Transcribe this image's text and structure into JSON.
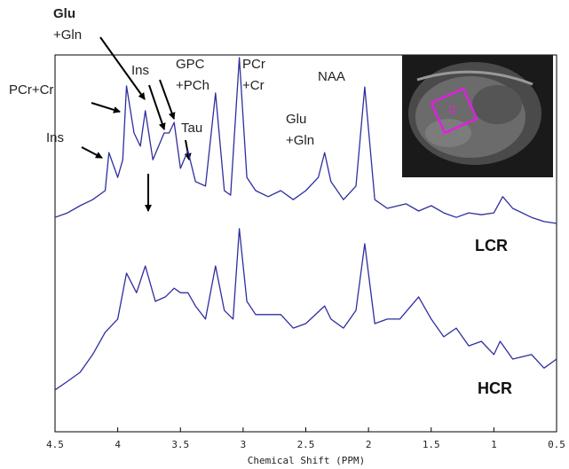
{
  "chart_data": {
    "type": "line",
    "x_label": "Chemical Shift (PPM)",
    "xlim": [
      4.5,
      0.5
    ],
    "xticks": [
      4.5,
      4,
      3.5,
      3,
      2.5,
      2,
      1.5,
      1,
      0.5
    ],
    "ylim": [
      0,
      100
    ],
    "annotations": [
      [
        "Glu",
        "+Gln"
      ],
      [
        "PCr+Cr"
      ],
      [
        "Ins"
      ],
      [
        "Ins"
      ],
      [
        "GPC",
        "+PCh"
      ],
      [
        "Tau"
      ],
      [
        "PCr",
        "+Cr"
      ],
      [
        "NAA"
      ],
      [
        "Glu",
        "+Gln"
      ]
    ],
    "series": [
      {
        "name": "LCR",
        "color": "#2e2e9e",
        "x": [
          4.5,
          4.4,
          4.3,
          4.2,
          4.1,
          4.07,
          4.0,
          3.96,
          3.93,
          3.87,
          3.82,
          3.78,
          3.72,
          3.63,
          3.59,
          3.55,
          3.5,
          3.44,
          3.38,
          3.3,
          3.22,
          3.15,
          3.1,
          3.03,
          2.97,
          2.9,
          2.8,
          2.7,
          2.6,
          2.5,
          2.4,
          2.35,
          2.3,
          2.2,
          2.1,
          2.03,
          1.95,
          1.85,
          1.7,
          1.6,
          1.5,
          1.4,
          1.3,
          1.2,
          1.1,
          1.0,
          0.93,
          0.85,
          0.7,
          0.6,
          0.5
        ],
        "values": [
          56.9,
          58.1,
          60,
          61.6,
          64,
          74.1,
          67.5,
          72.2,
          91.8,
          79.3,
          75.8,
          85.2,
          72.2,
          79.3,
          79.3,
          82.1,
          69.9,
          74.6,
          66.4,
          65.2,
          89.9,
          64,
          62.8,
          99.3,
          67.5,
          64,
          62.4,
          64,
          61.6,
          64,
          67.5,
          74.1,
          66.4,
          61.6,
          65.2,
          91.5,
          61.6,
          59.3,
          60.5,
          58.6,
          60,
          58.1,
          56.9,
          58.1,
          57.6,
          58.1,
          62.4,
          59.3,
          56.9,
          55.8,
          55.3
        ]
      },
      {
        "name": "HCR",
        "color": "#2e2e9e",
        "x": [
          4.5,
          4.4,
          4.3,
          4.2,
          4.1,
          4.0,
          3.93,
          3.85,
          3.78,
          3.7,
          3.62,
          3.55,
          3.5,
          3.44,
          3.38,
          3.3,
          3.22,
          3.15,
          3.08,
          3.03,
          2.97,
          2.9,
          2.7,
          2.6,
          2.5,
          2.35,
          2.3,
          2.2,
          2.1,
          2.03,
          1.95,
          1.85,
          1.75,
          1.6,
          1.5,
          1.4,
          1.3,
          1.2,
          1.1,
          1.0,
          0.95,
          0.85,
          0.7,
          0.6,
          0.5
        ],
        "values": [
          11.1,
          13.4,
          15.8,
          20.5,
          26.4,
          29.9,
          42.1,
          36.9,
          44,
          34.6,
          35.8,
          38.1,
          36.9,
          36.9,
          33.4,
          29.9,
          44,
          32.2,
          29.9,
          53.9,
          34.6,
          31.1,
          31.1,
          27.5,
          28.7,
          33.4,
          29.9,
          27.5,
          32.2,
          49.9,
          28.7,
          29.9,
          29.9,
          35.8,
          29.9,
          25.2,
          27.5,
          22.8,
          24,
          20.5,
          24,
          19.3,
          20.5,
          16.9,
          19.3
        ]
      }
    ]
  }
}
